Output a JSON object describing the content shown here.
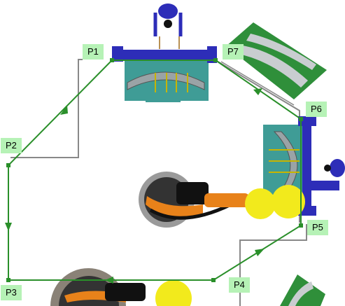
{
  "labels": {
    "p1": "P1",
    "p2": "P2",
    "p3": "P3",
    "p4": "P4",
    "p5": "P5",
    "p6": "P6",
    "p7": "P7"
  },
  "colors": {
    "path_green": "#2a8f2a",
    "label_bg": "#b6f2b6",
    "fixture_blue": "#2d2db8",
    "plate_teal": "#3f9c96",
    "robot_orange": "#e8821a",
    "ball_yellow": "#f2ea1c",
    "part_green": "#2f8f3a",
    "rail_gray": "#808080"
  },
  "icons": {
    "gripper": "robot-gripper-icon",
    "tool": "end-effector-icon"
  }
}
